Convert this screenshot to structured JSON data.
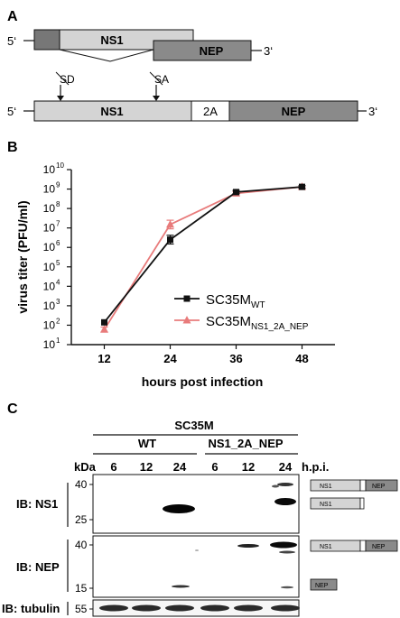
{
  "panels": {
    "a": "A",
    "b": "B",
    "c": "C"
  },
  "panel_a": {
    "end5": "5‘",
    "end3": "3‘",
    "ns1": "NS1",
    "nep": "NEP",
    "twoA": "2A",
    "sd": "SD",
    "sa": "SA"
  },
  "chart_data": {
    "type": "line",
    "x": [
      12,
      24,
      36,
      48
    ],
    "xlabel": "hours post infection",
    "ylabel": "virus titer (PFU/ml)",
    "yscale": "log",
    "ylim": [
      10,
      10000000000
    ],
    "xticks": [
      "12",
      "24",
      "36",
      "48"
    ],
    "yticks": [
      "10",
      "10",
      "10",
      "10",
      "10",
      "10",
      "10",
      "10",
      "10",
      "10"
    ],
    "yexps": [
      "1",
      "2",
      "3",
      "4",
      "5",
      "6",
      "7",
      "8",
      "9",
      "10"
    ],
    "series": [
      {
        "name": "SC35M",
        "sub": "WT",
        "color": "#111111",
        "marker": "square",
        "values": [
          140,
          2500000,
          700000000,
          1300000000
        ],
        "err_hi": [
          null,
          4200000,
          850000000,
          1500000000
        ],
        "err_lo": [
          null,
          1500000,
          580000000,
          1100000000
        ]
      },
      {
        "name": "SC35M",
        "sub": "NS1_2A_NEP",
        "color": "#e87b7b",
        "marker": "triangle",
        "values": [
          60,
          15000000,
          600000000,
          1300000000
        ],
        "err_hi": [
          80,
          25000000,
          720000000,
          1450000000
        ],
        "err_lo": [
          45,
          9000000,
          500000000,
          1150000000
        ]
      }
    ],
    "grid": false,
    "legend": "right"
  },
  "panel_c": {
    "strain": "SC35M",
    "groups": [
      "WT",
      "NS1_2A_NEP"
    ],
    "lanes": [
      "6",
      "12",
      "24",
      "6",
      "12",
      "24"
    ],
    "kda": "kDa",
    "hpi": "h.p.i.",
    "blots": [
      {
        "label": "IB: NS1",
        "markers": [
          "40",
          "25"
        ]
      },
      {
        "label": "IB: NEP",
        "markers": [
          "40",
          "15"
        ]
      },
      {
        "label": "IB: tubulin",
        "markers": [
          "55"
        ]
      }
    ],
    "icons": {
      "ns1": "NS1",
      "nep": "NEP"
    }
  }
}
